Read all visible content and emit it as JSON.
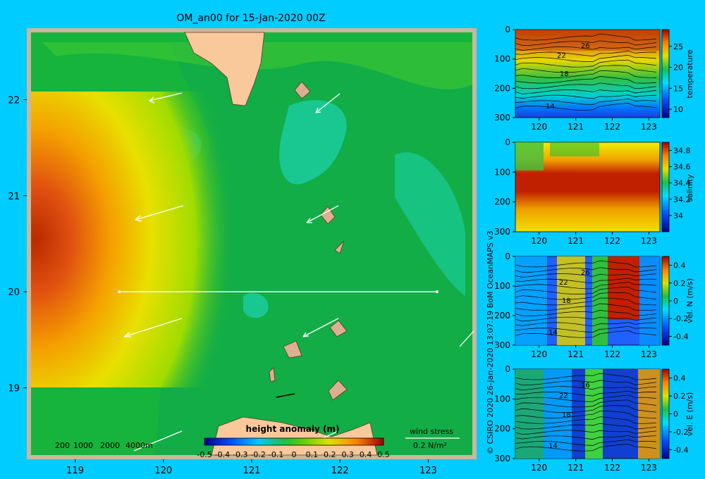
{
  "title": "OM_an00 for 15-Jan-2020 00Z",
  "credit": "© CSIRO 2020   26-Jan-2020 13:07:19 BoM OceanMAPS v3",
  "colors": {
    "background": "#00ccff",
    "land": "#f9c89b",
    "frame": "#c8b8a0",
    "map_base": "#16b43c",
    "section_line": "#ffffff"
  },
  "chart_data": [
    {
      "type": "heatmap",
      "name": "height anomaly map",
      "xticks": [
        119,
        120,
        121,
        122,
        123
      ],
      "yticks": [
        19,
        20,
        21,
        22
      ],
      "xlim": [
        118.5,
        123.5
      ],
      "ylim": [
        18.3,
        22.7
      ],
      "colorbar": {
        "label": "height anomaly (m)",
        "ticks": [
          "-0.5",
          "-0.4",
          "-0.3",
          "-0.2",
          "-0.1",
          "0",
          "0.1",
          "0.2",
          "0.3",
          "0.4",
          "0.5"
        ],
        "range": [
          -0.5,
          0.5
        ]
      },
      "section_line": {
        "lat": 20,
        "lon_from": 119.5,
        "lon_to": 123.1
      },
      "depth_legend": [
        "200",
        "1000",
        "2000",
        "4000m"
      ],
      "wind_legend": {
        "label": "wind stress",
        "value": "0.2 N/m²"
      }
    },
    {
      "type": "heatmap",
      "name": "temperature section",
      "xticks": [
        120,
        121,
        122,
        123
      ],
      "yticks": [
        0,
        100,
        200,
        300
      ],
      "colorbar_ticks": [
        10,
        15,
        20,
        25
      ],
      "colorbar_range": [
        8,
        29
      ],
      "colorbar_label": "temperature",
      "contour_labels": [
        "26",
        "22",
        "18",
        "14"
      ]
    },
    {
      "type": "heatmap",
      "name": "salinity section",
      "xticks": [
        120,
        121,
        122,
        123
      ],
      "yticks": [
        0,
        100,
        200,
        300
      ],
      "colorbar_ticks": [
        "34.8",
        "34.6",
        "34.4",
        "34.2",
        "34"
      ],
      "colorbar_range": [
        33.8,
        34.9
      ],
      "colorbar_label": "salinity"
    },
    {
      "type": "heatmap",
      "name": "northward velocity section",
      "xticks": [
        120,
        121,
        122,
        123
      ],
      "yticks": [
        0,
        100,
        200,
        300
      ],
      "colorbar_ticks": [
        "0.4",
        "0.2",
        "0",
        "-0.2",
        "-0.4"
      ],
      "colorbar_range": [
        -0.5,
        0.5
      ],
      "colorbar_label": "vel. N (m/s)",
      "contour_labels": [
        "26",
        "22",
        "18",
        "14"
      ]
    },
    {
      "type": "heatmap",
      "name": "eastward velocity section",
      "xticks": [
        120,
        121,
        122,
        123
      ],
      "yticks": [
        0,
        100,
        200,
        300
      ],
      "colorbar_ticks": [
        "0.4",
        "0.2",
        "0",
        "-0.2",
        "-0.4"
      ],
      "colorbar_range": [
        -0.5,
        0.5
      ],
      "colorbar_label": "vel. E (m/s)",
      "contour_labels": [
        "16",
        "22",
        "18",
        "14"
      ]
    }
  ]
}
